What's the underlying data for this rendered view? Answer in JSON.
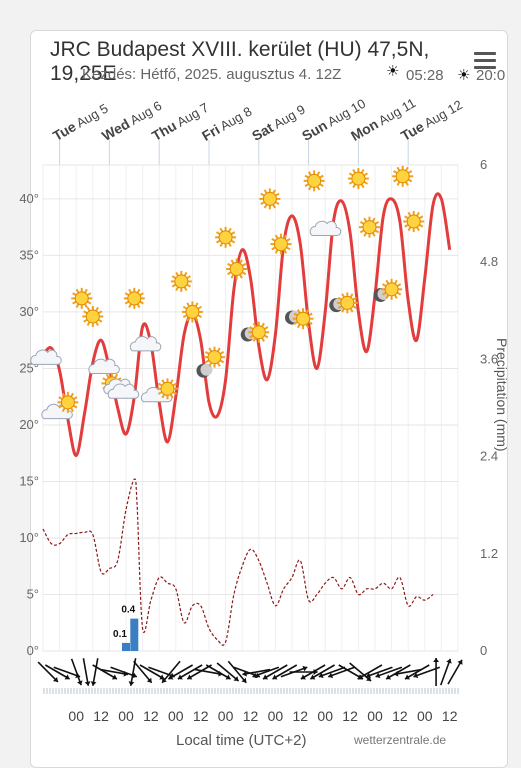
{
  "header": {
    "title": "JRC Budapest XVIII. kerület (HU) 47,5N, 19,25E",
    "subtitle": "Kezdés: Hétfő, 2025. augusztus 4. 12Z",
    "sunrise": "05:28",
    "sunset": "20:0",
    "credit": "wetterzentrale.de",
    "menu_icon": "hamburger-menu-icon"
  },
  "chart_data": {
    "type": "line",
    "top_days": [
      {
        "day": "Tue",
        "date": "Aug 5"
      },
      {
        "day": "Wed",
        "date": "Aug 6"
      },
      {
        "day": "Thu",
        "date": "Aug 7"
      },
      {
        "day": "Fri",
        "date": "Aug 8"
      },
      {
        "day": "Sat",
        "date": "Aug 9"
      },
      {
        "day": "Sun",
        "date": "Aug 10"
      },
      {
        "day": "Mon",
        "date": "Aug 11"
      },
      {
        "day": "Tue",
        "date": "Aug 12"
      }
    ],
    "x_tick_labels": [
      "00",
      "12",
      "00",
      "12",
      "00",
      "12",
      "00",
      "12",
      "00",
      "12",
      "00",
      "12",
      "00",
      "12",
      "00",
      "12"
    ],
    "xlabel": "Local time (UTC+2)",
    "y_left": {
      "ticks": [
        "0°",
        "5°",
        "10°",
        "15°",
        "20°",
        "25°",
        "30°",
        "35°",
        "40°"
      ],
      "range": [
        0,
        43
      ]
    },
    "y_right": {
      "label": "Precipitation (mm)",
      "ticks": [
        "0",
        "1.2",
        "2.4",
        "3.6",
        "4.8",
        "6"
      ],
      "range": [
        0,
        6
      ]
    },
    "temperature": {
      "color": "#e23c3c",
      "points": [
        [
          0,
          26.2
        ],
        [
          3,
          26.8
        ],
        [
          6,
          24.8
        ],
        [
          9,
          20.5
        ],
        [
          12,
          17.3
        ],
        [
          15,
          21.0
        ],
        [
          18,
          25.5
        ],
        [
          21,
          27.5
        ],
        [
          24,
          25.0
        ],
        [
          27,
          21.5
        ],
        [
          30,
          19.2
        ],
        [
          33,
          22.5
        ],
        [
          36,
          28.7
        ],
        [
          39,
          27.2
        ],
        [
          42,
          22.0
        ],
        [
          45,
          18.5
        ],
        [
          48,
          22.5
        ],
        [
          51,
          28.0
        ],
        [
          54,
          29.8
        ],
        [
          57,
          27.5
        ],
        [
          60,
          22.0
        ],
        [
          63,
          20.8
        ],
        [
          66,
          24.0
        ],
        [
          69,
          32.0
        ],
        [
          72,
          35.5
        ],
        [
          75,
          33.0
        ],
        [
          78,
          27.0
        ],
        [
          81,
          24.0
        ],
        [
          84,
          28.0
        ],
        [
          87,
          36.0
        ],
        [
          90,
          38.5
        ],
        [
          93,
          36.0
        ],
        [
          96,
          29.0
        ],
        [
          99,
          25.0
        ],
        [
          102,
          30.0
        ],
        [
          105,
          38.0
        ],
        [
          108,
          39.8
        ],
        [
          111,
          37.0
        ],
        [
          114,
          30.0
        ],
        [
          117,
          26.5
        ],
        [
          120,
          31.5
        ],
        [
          123,
          38.5
        ],
        [
          126,
          40.0
        ],
        [
          129,
          38.0
        ],
        [
          132,
          31.0
        ],
        [
          135,
          27.5
        ],
        [
          138,
          33.0
        ],
        [
          141,
          39.5
        ],
        [
          144,
          40.0
        ],
        [
          147,
          35.5
        ]
      ]
    },
    "dewpoint": {
      "color": "#8b1a1a",
      "points": [
        [
          0,
          10.8
        ],
        [
          3,
          9.5
        ],
        [
          6,
          9.5
        ],
        [
          9,
          10.3
        ],
        [
          12,
          10.4
        ],
        [
          15,
          10.5
        ],
        [
          18,
          10.3
        ],
        [
          21,
          7.0
        ],
        [
          24,
          7.3
        ],
        [
          27,
          8.0
        ],
        [
          30,
          12.5
        ],
        [
          33,
          15.2
        ],
        [
          34,
          13.0
        ],
        [
          36,
          2.0
        ],
        [
          39,
          4.5
        ],
        [
          42,
          6.5
        ],
        [
          45,
          6.0
        ],
        [
          48,
          5.5
        ],
        [
          51,
          2.5
        ],
        [
          54,
          4.0
        ],
        [
          57,
          4.0
        ],
        [
          60,
          2.0
        ],
        [
          63,
          1.0
        ],
        [
          66,
          0.8
        ],
        [
          69,
          5.0
        ],
        [
          72,
          7.5
        ],
        [
          75,
          9.0
        ],
        [
          78,
          8.0
        ],
        [
          81,
          6.0
        ],
        [
          84,
          4.0
        ],
        [
          87,
          5.5
        ],
        [
          90,
          6.5
        ],
        [
          93,
          8.0
        ],
        [
          96,
          4.5
        ],
        [
          99,
          5.0
        ],
        [
          102,
          6.0
        ],
        [
          105,
          6.5
        ],
        [
          108,
          5.5
        ],
        [
          111,
          6.5
        ],
        [
          114,
          5.0
        ],
        [
          117,
          5.5
        ],
        [
          120,
          5.5
        ],
        [
          123,
          6.0
        ],
        [
          126,
          5.5
        ],
        [
          129,
          6.5
        ],
        [
          132,
          4.0
        ],
        [
          135,
          4.8
        ],
        [
          138,
          4.5
        ],
        [
          141,
          5.0
        ]
      ]
    },
    "precipitation_bars": [
      {
        "x": 30,
        "value": 0.1,
        "label": "0.1"
      },
      {
        "x": 33,
        "value": 0.4,
        "label": "0.4"
      }
    ],
    "weather_icons": [
      {
        "x": 1,
        "t": 25.8,
        "icon": "cloud-icon"
      },
      {
        "x": 5,
        "t": 21.0,
        "icon": "cloud-icon"
      },
      {
        "x": 9,
        "t": 22.0,
        "icon": "sun-icon"
      },
      {
        "x": 14,
        "t": 31.2,
        "icon": "sun-icon"
      },
      {
        "x": 18,
        "t": 29.6,
        "icon": "sun-icon"
      },
      {
        "x": 22,
        "t": 25.0,
        "icon": "cloud-icon"
      },
      {
        "x": 26,
        "t": 23.5,
        "icon": "partly-sunny-icon"
      },
      {
        "x": 29,
        "t": 22.8,
        "icon": "cloud-icon"
      },
      {
        "x": 33,
        "t": 31.2,
        "icon": "sun-icon"
      },
      {
        "x": 37,
        "t": 27.0,
        "icon": "cloud-icon"
      },
      {
        "x": 41,
        "t": 22.5,
        "icon": "cloud-icon"
      },
      {
        "x": 45,
        "t": 23.2,
        "icon": "sun-icon"
      },
      {
        "x": 50,
        "t": 32.7,
        "icon": "sun-icon"
      },
      {
        "x": 54,
        "t": 30.0,
        "icon": "sun-icon"
      },
      {
        "x": 58,
        "t": 24.8,
        "icon": "moon-icon"
      },
      {
        "x": 62,
        "t": 26.0,
        "icon": "sun-icon"
      },
      {
        "x": 66,
        "t": 36.6,
        "icon": "sun-icon"
      },
      {
        "x": 70,
        "t": 33.8,
        "icon": "sun-icon"
      },
      {
        "x": 74,
        "t": 28.0,
        "icon": "moon-icon"
      },
      {
        "x": 78,
        "t": 28.2,
        "icon": "sun-icon"
      },
      {
        "x": 82,
        "t": 40.0,
        "icon": "sun-icon"
      },
      {
        "x": 86,
        "t": 36.0,
        "icon": "sun-icon"
      },
      {
        "x": 90,
        "t": 29.5,
        "icon": "moon-icon"
      },
      {
        "x": 94,
        "t": 29.4,
        "icon": "sun-icon"
      },
      {
        "x": 98,
        "t": 41.6,
        "icon": "sun-icon"
      },
      {
        "x": 102,
        "t": 37.2,
        "icon": "cloud-icon"
      },
      {
        "x": 106,
        "t": 30.6,
        "icon": "moon-icon"
      },
      {
        "x": 110,
        "t": 30.8,
        "icon": "sun-icon"
      },
      {
        "x": 114,
        "t": 41.8,
        "icon": "sun-icon"
      },
      {
        "x": 118,
        "t": 37.5,
        "icon": "sun-icon"
      },
      {
        "x": 122,
        "t": 31.5,
        "icon": "moon-icon"
      },
      {
        "x": 126,
        "t": 32.0,
        "icon": "sun-icon"
      },
      {
        "x": 130,
        "t": 42.0,
        "icon": "sun-icon"
      },
      {
        "x": 134,
        "t": 38.0,
        "icon": "sun-icon"
      }
    ],
    "wind_directions_deg": [
      315,
      300,
      290,
      340,
      350,
      10,
      300,
      280,
      290,
      10,
      320,
      300,
      290,
      40,
      60,
      60,
      60,
      280,
      300,
      310,
      320,
      290,
      80,
      70,
      60,
      60,
      250,
      270,
      60,
      60,
      70,
      70,
      300,
      310,
      60,
      70,
      70,
      60,
      80,
      60,
      70,
      180,
      200,
      210
    ]
  }
}
